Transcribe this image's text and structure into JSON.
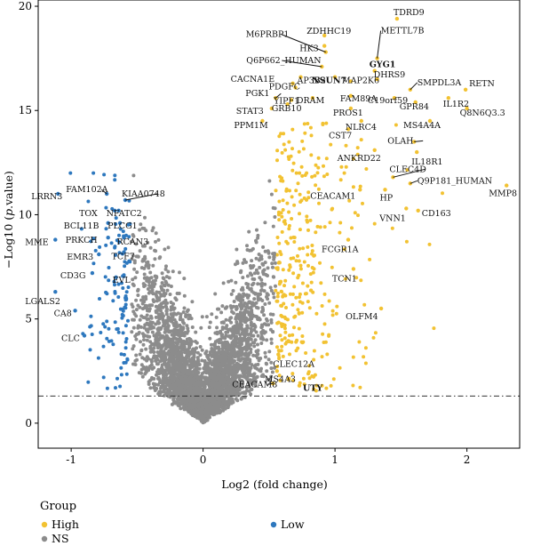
{
  "chart_data": {
    "type": "scatter",
    "xlabel": "Log2 (fold change)",
    "ylabel_main": "−Log10 (",
    "ylabel_italic": "p",
    "ylabel_tail": ".value)",
    "xlim": [
      -1.25,
      2.4
    ],
    "ylim": [
      -1.2,
      20.3
    ],
    "xticks": [
      -1,
      0,
      1,
      2
    ],
    "yticks": [
      0,
      5,
      10,
      15,
      20
    ],
    "threshold_y": 1.3,
    "grid": false,
    "legend": {
      "title": "Group",
      "placement": "bottom",
      "entries": [
        {
          "name": "High",
          "color": "#F2C232"
        },
        {
          "name": "NS",
          "color": "#8C8C8C"
        },
        {
          "name": "Low",
          "color": "#2E78BE"
        }
      ]
    },
    "labeled_points": [
      {
        "label": "TDRD9",
        "x": 1.47,
        "y": 19.4,
        "group": "High"
      },
      {
        "label": "ZDHHC19",
        "x": 0.92,
        "y": 18.6,
        "group": "High"
      },
      {
        "label": "HK3",
        "x": 0.92,
        "y": 18.1,
        "group": "High"
      },
      {
        "label": "M6PRBP1",
        "x": 0.93,
        "y": 17.8,
        "group": "High"
      },
      {
        "label": "METTL7B",
        "x": 1.32,
        "y": 17.5,
        "group": "High"
      },
      {
        "label": "Q6P662_HUMAN",
        "x": 0.9,
        "y": 17.1,
        "group": "High"
      },
      {
        "label": "GYG1",
        "x": 1.3,
        "y": 16.9,
        "group": "High"
      },
      {
        "label": "AP3B2",
        "x": 0.74,
        "y": 16.6,
        "group": "High"
      },
      {
        "label": "NSUN7",
        "x": 1.0,
        "y": 16.6,
        "group": "High"
      },
      {
        "label": "RETN",
        "x": 1.99,
        "y": 16.0,
        "group": "High"
      },
      {
        "label": "DHRS9",
        "x": 1.32,
        "y": 16.5,
        "group": "High"
      },
      {
        "label": "CACNA1E",
        "x": 0.68,
        "y": 16.3,
        "group": "High"
      },
      {
        "label": "MAP2K6",
        "x": 1.12,
        "y": 16.4,
        "group": "High"
      },
      {
        "label": "SMPDL3A",
        "x": 1.57,
        "y": 16.0,
        "group": "High"
      },
      {
        "label": "PDGFC",
        "x": 0.7,
        "y": 16.1,
        "group": "High"
      },
      {
        "label": "FAM89A",
        "x": 1.12,
        "y": 15.7,
        "group": "High"
      },
      {
        "label": "PGK1",
        "x": 0.55,
        "y": 15.6,
        "group": "High"
      },
      {
        "label": "YIPF1",
        "x": 0.67,
        "y": 15.5,
        "group": "High"
      },
      {
        "label": "DRAM",
        "x": 0.83,
        "y": 15.6,
        "group": "High"
      },
      {
        "label": "C19orf59",
        "x": 1.45,
        "y": 15.6,
        "group": "High"
      },
      {
        "label": "IL1R2",
        "x": 1.86,
        "y": 15.6,
        "group": "High"
      },
      {
        "label": "STAT3",
        "x": 0.52,
        "y": 15.1,
        "group": "High"
      },
      {
        "label": "GRB10",
        "x": 0.64,
        "y": 15.3,
        "group": "High"
      },
      {
        "label": "PROS1",
        "x": 1.12,
        "y": 15.1,
        "group": "High"
      },
      {
        "label": "GPR84",
        "x": 1.61,
        "y": 15.4,
        "group": "High"
      },
      {
        "label": "Q8N6Q3.3",
        "x": 2.0,
        "y": 15.1,
        "group": "High"
      },
      {
        "label": "PPM1M",
        "x": 0.45,
        "y": 14.5,
        "group": "High"
      },
      {
        "label": "NLRC4",
        "x": 1.2,
        "y": 14.5,
        "group": "High"
      },
      {
        "label": "MS4A4A",
        "x": 1.72,
        "y": 14.5,
        "group": "High"
      },
      {
        "label": "CST7",
        "x": 1.1,
        "y": 14.1,
        "group": "High"
      },
      {
        "label": "OLAH",
        "x": 1.6,
        "y": 13.5,
        "group": "High"
      },
      {
        "label": "ANKRD22",
        "x": 1.3,
        "y": 13.1,
        "group": "High"
      },
      {
        "label": "IL18R1",
        "x": 1.62,
        "y": 13.0,
        "group": "High"
      },
      {
        "label": "CLEC4D",
        "x": 1.44,
        "y": 11.8,
        "group": "High"
      },
      {
        "label": "CEACAM1",
        "x": 1.19,
        "y": 11.2,
        "group": "High"
      },
      {
        "label": "Q9P181_HUMAN",
        "x": 1.57,
        "y": 11.5,
        "group": "High"
      },
      {
        "label": "MMP8",
        "x": 2.3,
        "y": 11.4,
        "group": "High"
      },
      {
        "label": "HP",
        "x": 1.38,
        "y": 11.2,
        "group": "High"
      },
      {
        "label": "VNN1",
        "x": 1.54,
        "y": 10.3,
        "group": "High"
      },
      {
        "label": "CD163",
        "x": 1.63,
        "y": 10.2,
        "group": "High"
      },
      {
        "label": "FCGR1A",
        "x": 1.1,
        "y": 8.8,
        "group": "High"
      },
      {
        "label": "TCN1",
        "x": 1.14,
        "y": 7.4,
        "group": "High"
      },
      {
        "label": "OLFM4",
        "x": 1.35,
        "y": 5.5,
        "group": "High"
      },
      {
        "label": "CLEC12A",
        "x": 0.57,
        "y": 3.3,
        "group": "High"
      },
      {
        "label": "MS4A3",
        "x": 0.56,
        "y": 2.5,
        "group": "High"
      },
      {
        "label": "CEACAM8",
        "x": 0.53,
        "y": 1.9,
        "group": "High"
      },
      {
        "label": "UTY",
        "x": 0.73,
        "y": 1.8,
        "group": "High"
      },
      {
        "label": "LRRN3",
        "x": -1.1,
        "y": 11.0,
        "group": "Low"
      },
      {
        "label": "FAM102A",
        "x": -0.73,
        "y": 11.0,
        "group": "Low"
      },
      {
        "label": "KIAA0748",
        "x": -0.59,
        "y": 10.7,
        "group": "Low"
      },
      {
        "label": "TOX",
        "x": -0.67,
        "y": 10.2,
        "group": "Low"
      },
      {
        "label": "NFATC2",
        "x": -0.64,
        "y": 10.2,
        "group": "Low"
      },
      {
        "label": "BCL11B",
        "x": -0.72,
        "y": 9.6,
        "group": "Low"
      },
      {
        "label": "PLCG1",
        "x": -0.63,
        "y": 9.6,
        "group": "Low"
      },
      {
        "label": "MME",
        "x": -1.12,
        "y": 8.8,
        "group": "Low"
      },
      {
        "label": "PRKCH",
        "x": -0.72,
        "y": 8.9,
        "group": "Low"
      },
      {
        "label": "RCAN3",
        "x": -0.6,
        "y": 8.9,
        "group": "Low"
      },
      {
        "label": "EMR3",
        "x": -0.79,
        "y": 8.1,
        "group": "Low"
      },
      {
        "label": "TCF7",
        "x": -0.6,
        "y": 8.2,
        "group": "Low"
      },
      {
        "label": "CD3G",
        "x": -0.84,
        "y": 7.2,
        "group": "Low"
      },
      {
        "label": "EVL",
        "x": -0.66,
        "y": 7.0,
        "group": "Low"
      },
      {
        "label": "LGALS2",
        "x": -1.12,
        "y": 6.3,
        "group": "Low"
      },
      {
        "label": "CA8",
        "x": -0.97,
        "y": 5.4,
        "group": "Low"
      },
      {
        "label": "CLC",
        "x": -0.9,
        "y": 4.2,
        "group": "Low"
      }
    ]
  }
}
